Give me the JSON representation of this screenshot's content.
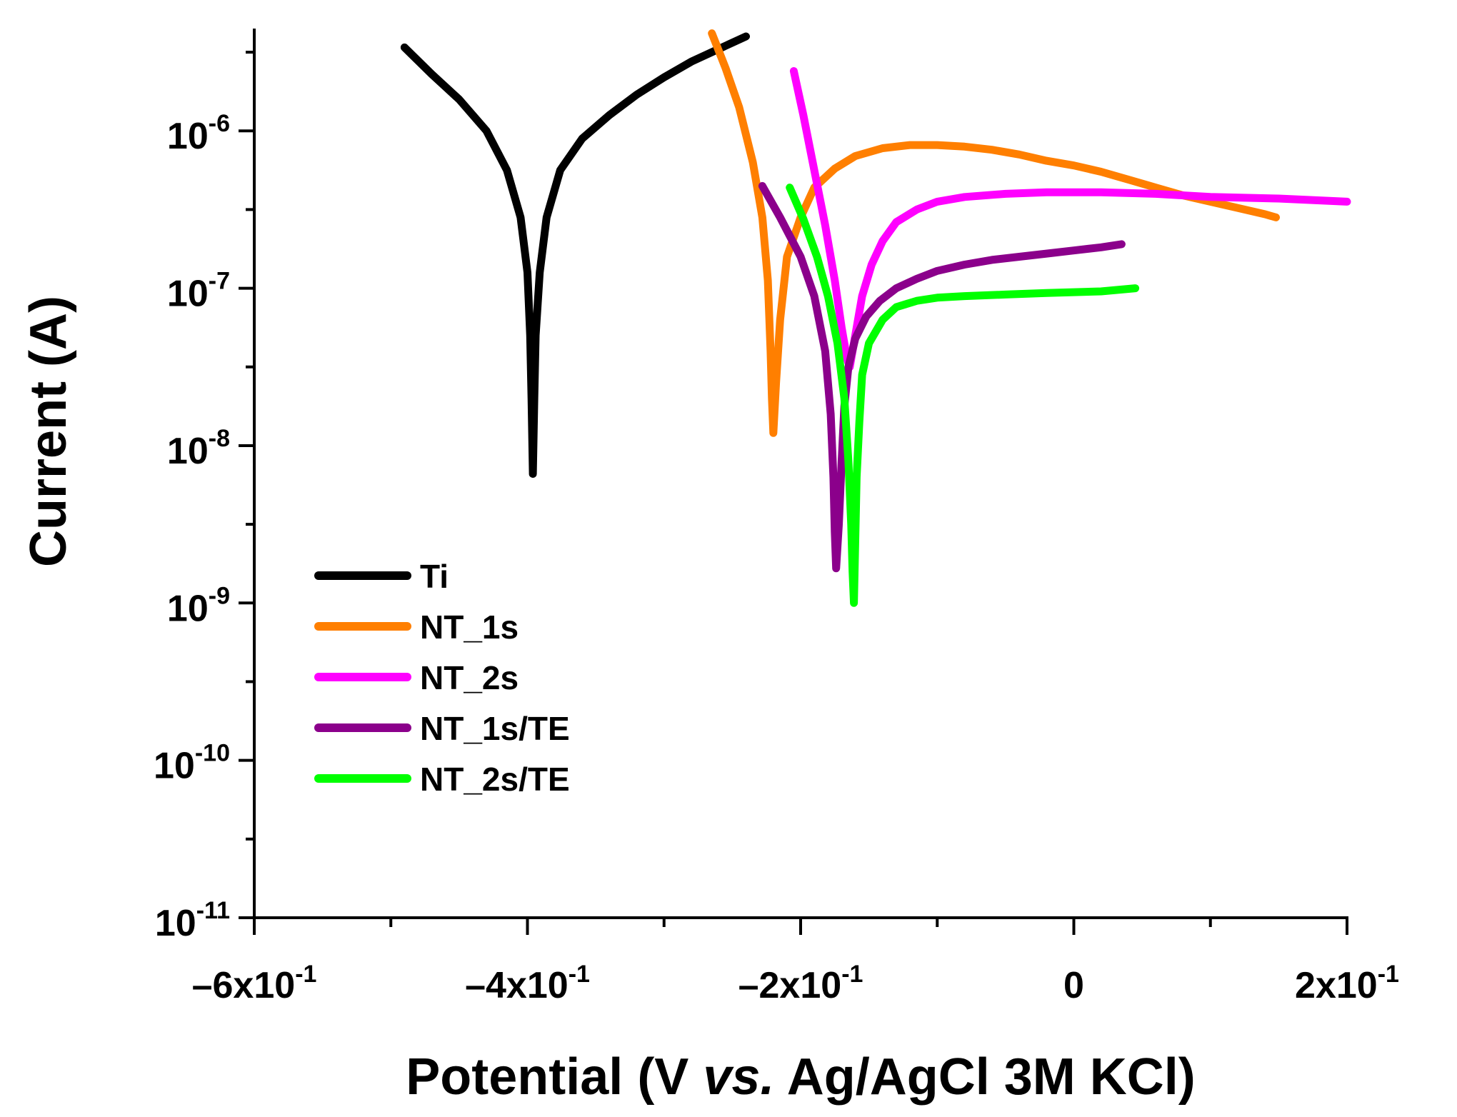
{
  "chart_data": {
    "type": "line",
    "title": "",
    "xlabel": {
      "before": "Potential (V ",
      "italic": "vs.",
      "after": " Ag/AgCl 3M KCl)"
    },
    "ylabel": "Current (A)",
    "y_scale": "log",
    "xlim": [
      -0.6,
      0.2
    ],
    "ylim_log10": [
      -11,
      -5.35
    ],
    "x_ticks": [
      {
        "value": -0.6,
        "mantissa": "–6x10",
        "exp": "-1"
      },
      {
        "value": -0.4,
        "mantissa": "–4x10",
        "exp": "-1"
      },
      {
        "value": -0.2,
        "mantissa": "–2x10",
        "exp": "-1"
      },
      {
        "value": 0.0,
        "mantissa": "0",
        "exp": ""
      },
      {
        "value": 0.2,
        "mantissa": "2x10",
        "exp": "-1"
      }
    ],
    "x_minor_ticks": [
      -0.5,
      -0.3,
      -0.1,
      0.1
    ],
    "y_ticks": [
      {
        "log": -6,
        "base": "10",
        "exp": "-6"
      },
      {
        "log": -7,
        "base": "10",
        "exp": "-7"
      },
      {
        "log": -8,
        "base": "10",
        "exp": "-8"
      },
      {
        "log": -9,
        "base": "10",
        "exp": "-9"
      },
      {
        "log": -10,
        "base": "10",
        "exp": "-10"
      },
      {
        "log": -11,
        "base": "10",
        "exp": "-11"
      }
    ],
    "y_minor_ticks": [
      -5.5,
      -6.5,
      -7.5,
      -8.5,
      -9.5,
      -10.5
    ],
    "legend_position": "lower-left",
    "series": [
      {
        "name": "Ti",
        "color": "#000000",
        "points": [
          [
            -0.49,
            -5.47
          ],
          [
            -0.47,
            -5.64
          ],
          [
            -0.45,
            -5.8
          ],
          [
            -0.43,
            -6.0
          ],
          [
            -0.415,
            -6.25
          ],
          [
            -0.405,
            -6.55
          ],
          [
            -0.4,
            -6.9
          ],
          [
            -0.398,
            -7.3
          ],
          [
            -0.397,
            -7.7
          ],
          [
            -0.396,
            -8.18
          ],
          [
            -0.395,
            -7.7
          ],
          [
            -0.394,
            -7.3
          ],
          [
            -0.391,
            -6.9
          ],
          [
            -0.386,
            -6.55
          ],
          [
            -0.376,
            -6.25
          ],
          [
            -0.36,
            -6.05
          ],
          [
            -0.34,
            -5.9
          ],
          [
            -0.32,
            -5.77
          ],
          [
            -0.3,
            -5.66
          ],
          [
            -0.28,
            -5.56
          ],
          [
            -0.26,
            -5.48
          ],
          [
            -0.24,
            -5.4
          ]
        ]
      },
      {
        "name": "NT_1s",
        "color": "#ff7f00",
        "points": [
          [
            -0.265,
            -5.38
          ],
          [
            -0.255,
            -5.6
          ],
          [
            -0.245,
            -5.85
          ],
          [
            -0.235,
            -6.2
          ],
          [
            -0.228,
            -6.55
          ],
          [
            -0.224,
            -6.95
          ],
          [
            -0.222,
            -7.4
          ],
          [
            -0.221,
            -7.7
          ],
          [
            -0.22,
            -7.92
          ],
          [
            -0.218,
            -7.6
          ],
          [
            -0.215,
            -7.2
          ],
          [
            -0.21,
            -6.8
          ],
          [
            -0.2,
            -6.55
          ],
          [
            -0.19,
            -6.36
          ],
          [
            -0.175,
            -6.24
          ],
          [
            -0.16,
            -6.16
          ],
          [
            -0.14,
            -6.11
          ],
          [
            -0.12,
            -6.09
          ],
          [
            -0.1,
            -6.09
          ],
          [
            -0.08,
            -6.1
          ],
          [
            -0.06,
            -6.12
          ],
          [
            -0.04,
            -6.15
          ],
          [
            -0.02,
            -6.19
          ],
          [
            0.0,
            -6.22
          ],
          [
            0.02,
            -6.26
          ],
          [
            0.04,
            -6.31
          ],
          [
            0.06,
            -6.36
          ],
          [
            0.08,
            -6.41
          ],
          [
            0.1,
            -6.45
          ],
          [
            0.12,
            -6.49
          ],
          [
            0.14,
            -6.53
          ],
          [
            0.148,
            -6.55
          ]
        ]
      },
      {
        "name": "NT_2s",
        "color": "#ff00ff",
        "points": [
          [
            -0.205,
            -5.62
          ],
          [
            -0.198,
            -5.9
          ],
          [
            -0.19,
            -6.25
          ],
          [
            -0.182,
            -6.6
          ],
          [
            -0.175,
            -6.95
          ],
          [
            -0.17,
            -7.25
          ],
          [
            -0.166,
            -7.45
          ],
          [
            -0.164,
            -7.5
          ],
          [
            -0.16,
            -7.3
          ],
          [
            -0.155,
            -7.05
          ],
          [
            -0.148,
            -6.85
          ],
          [
            -0.14,
            -6.7
          ],
          [
            -0.13,
            -6.58
          ],
          [
            -0.115,
            -6.5
          ],
          [
            -0.1,
            -6.45
          ],
          [
            -0.08,
            -6.42
          ],
          [
            -0.05,
            -6.4
          ],
          [
            -0.02,
            -6.39
          ],
          [
            0.02,
            -6.39
          ],
          [
            0.06,
            -6.4
          ],
          [
            0.1,
            -6.42
          ],
          [
            0.15,
            -6.43
          ],
          [
            0.2,
            -6.45
          ]
        ]
      },
      {
        "name": "NT_1s/TE",
        "color": "#8b008b",
        "points": [
          [
            -0.228,
            -6.35
          ],
          [
            -0.215,
            -6.55
          ],
          [
            -0.2,
            -6.8
          ],
          [
            -0.19,
            -7.05
          ],
          [
            -0.182,
            -7.4
          ],
          [
            -0.178,
            -7.8
          ],
          [
            -0.176,
            -8.2
          ],
          [
            -0.175,
            -8.55
          ],
          [
            -0.174,
            -8.78
          ],
          [
            -0.172,
            -8.5
          ],
          [
            -0.17,
            -8.1
          ],
          [
            -0.168,
            -7.75
          ],
          [
            -0.165,
            -7.5
          ],
          [
            -0.16,
            -7.32
          ],
          [
            -0.152,
            -7.18
          ],
          [
            -0.142,
            -7.08
          ],
          [
            -0.13,
            -7.0
          ],
          [
            -0.115,
            -6.94
          ],
          [
            -0.1,
            -6.89
          ],
          [
            -0.08,
            -6.85
          ],
          [
            -0.06,
            -6.82
          ],
          [
            -0.04,
            -6.8
          ],
          [
            -0.02,
            -6.78
          ],
          [
            0.0,
            -6.76
          ],
          [
            0.02,
            -6.74
          ],
          [
            0.035,
            -6.72
          ]
        ]
      },
      {
        "name": "NT_2s/TE",
        "color": "#00ff00",
        "points": [
          [
            -0.208,
            -6.36
          ],
          [
            -0.198,
            -6.56
          ],
          [
            -0.188,
            -6.8
          ],
          [
            -0.18,
            -7.05
          ],
          [
            -0.173,
            -7.35
          ],
          [
            -0.168,
            -7.7
          ],
          [
            -0.165,
            -8.1
          ],
          [
            -0.163,
            -8.5
          ],
          [
            -0.162,
            -8.8
          ],
          [
            -0.161,
            -9.0
          ],
          [
            -0.16,
            -8.6
          ],
          [
            -0.159,
            -8.2
          ],
          [
            -0.157,
            -7.85
          ],
          [
            -0.155,
            -7.55
          ],
          [
            -0.15,
            -7.35
          ],
          [
            -0.14,
            -7.2
          ],
          [
            -0.13,
            -7.12
          ],
          [
            -0.115,
            -7.08
          ],
          [
            -0.1,
            -7.06
          ],
          [
            -0.08,
            -7.05
          ],
          [
            -0.05,
            -7.04
          ],
          [
            -0.02,
            -7.03
          ],
          [
            0.02,
            -7.02
          ],
          [
            0.045,
            -7.0
          ]
        ]
      }
    ]
  }
}
